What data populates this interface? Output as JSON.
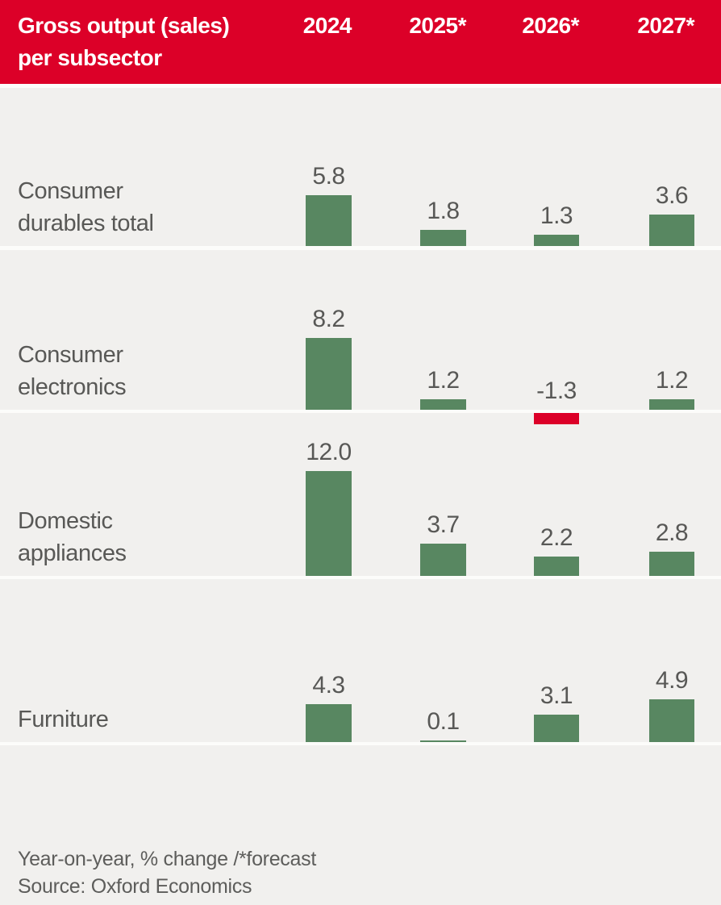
{
  "header": {
    "title_line1": "Gross output (sales)",
    "title_line2": "per subsector",
    "background_color": "#dc0028",
    "text_color": "#ffffff"
  },
  "footer": {
    "note": "Year-on-year, % change /*forecast",
    "source": "Source: Oxford Economics"
  },
  "colors": {
    "header_red": "#dc0028",
    "bar_positive_green": "#588761",
    "bar_negative_red": "#dc0028",
    "row_background": "#f1f0ee",
    "separator_white": "#fcfcfa",
    "label_gray": "#585856"
  },
  "chart_data": {
    "type": "bar",
    "title": "Gross output (sales) per subsector",
    "note": "Year-on-year, % change /*forecast",
    "source": "Source: Oxford Economics",
    "categories": [
      "2024",
      "2025*",
      "2026*",
      "2027*"
    ],
    "series": [
      {
        "name": "Consumer durables total",
        "label_lines": [
          "Consumer",
          "durables total"
        ],
        "values": [
          5.8,
          1.8,
          1.3,
          3.6
        ]
      },
      {
        "name": "Consumer electronics",
        "label_lines": [
          "Consumer",
          "electronics"
        ],
        "values": [
          8.2,
          1.2,
          -1.3,
          1.2
        ]
      },
      {
        "name": "Domestic appliances",
        "label_lines": [
          "Domestic",
          "appliances"
        ],
        "values": [
          12.0,
          3.7,
          2.2,
          2.8
        ]
      },
      {
        "name": "Furniture",
        "label_lines": [
          "Furniture"
        ],
        "values": [
          4.3,
          0.1,
          3.1,
          4.9
        ]
      }
    ],
    "value_labels_shown": true,
    "value_label_format": "one_decimal",
    "positive_color": "#588761",
    "negative_color": "#dc0028",
    "legend_position": "none",
    "grid": false
  }
}
